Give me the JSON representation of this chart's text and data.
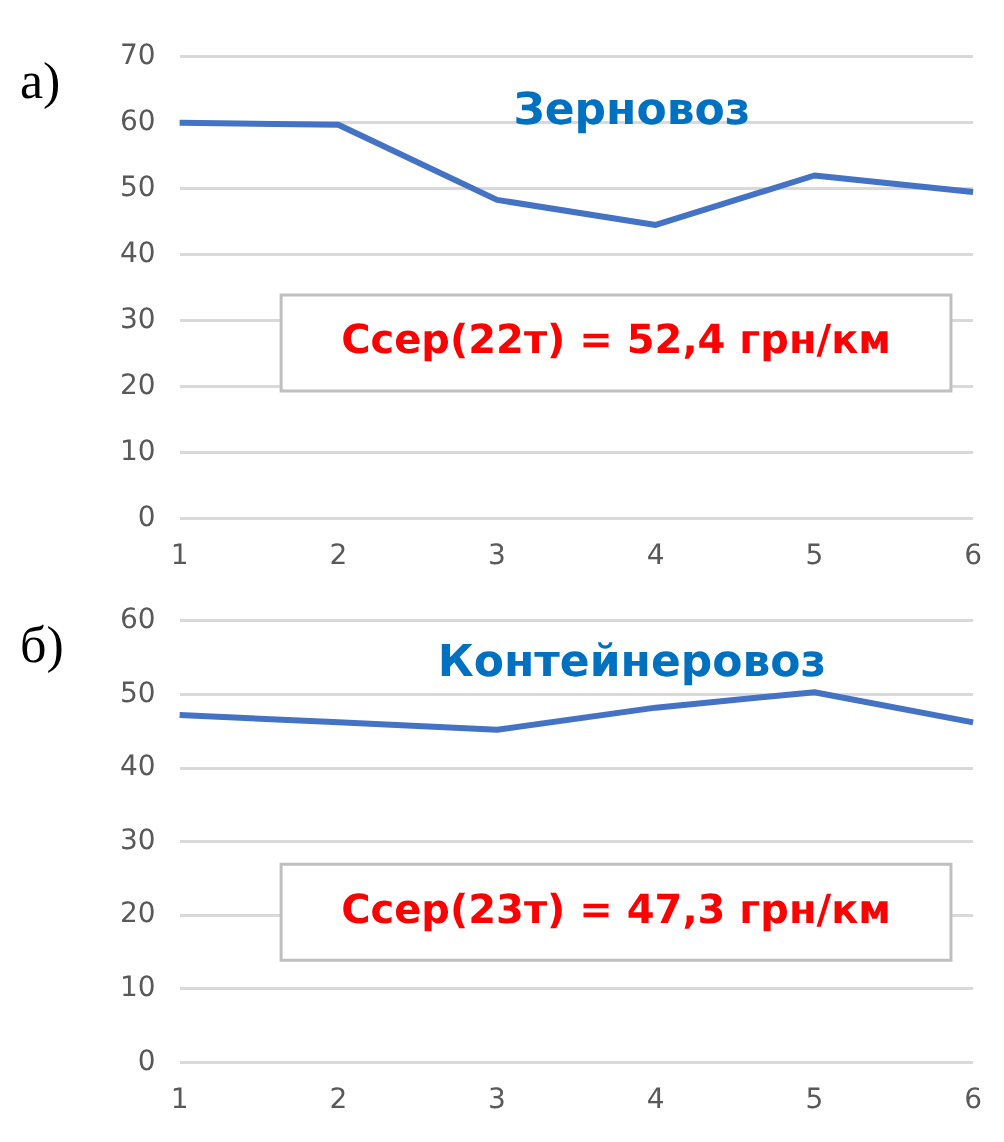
{
  "chart_data": [
    {
      "type": "line",
      "title": "Зерновоз",
      "categories": [
        "1",
        "2",
        "3",
        "4",
        "5",
        "6"
      ],
      "series": [
        {
          "color": "#4472c4",
          "values": [
            60,
            59.7,
            48.3,
            44.5,
            52,
            49.5
          ]
        }
      ],
      "ylim": [
        0,
        70
      ],
      "yticks": [
        0,
        10,
        20,
        30,
        40,
        50,
        60,
        70
      ],
      "grid": "y",
      "legend": false,
      "marker": "none",
      "annotations": [
        "а)",
        "Cсер(22т) = 52,4 грн/км"
      ]
    },
    {
      "type": "line",
      "title": "Контейнеровоз",
      "categories": [
        "1",
        "2",
        "3",
        "4",
        "5",
        "6"
      ],
      "series": [
        {
          "color": "#4472c4",
          "values": [
            47.2,
            46.2,
            45.2,
            48.2,
            50.3,
            46.2
          ]
        }
      ],
      "ylim": [
        0,
        60
      ],
      "yticks": [
        0,
        10,
        20,
        30,
        40,
        50,
        60
      ],
      "grid": "y",
      "legend": false,
      "marker": "none",
      "annotations": [
        "б)",
        "Cсер(23т) = 47,3 грн/км"
      ]
    }
  ]
}
